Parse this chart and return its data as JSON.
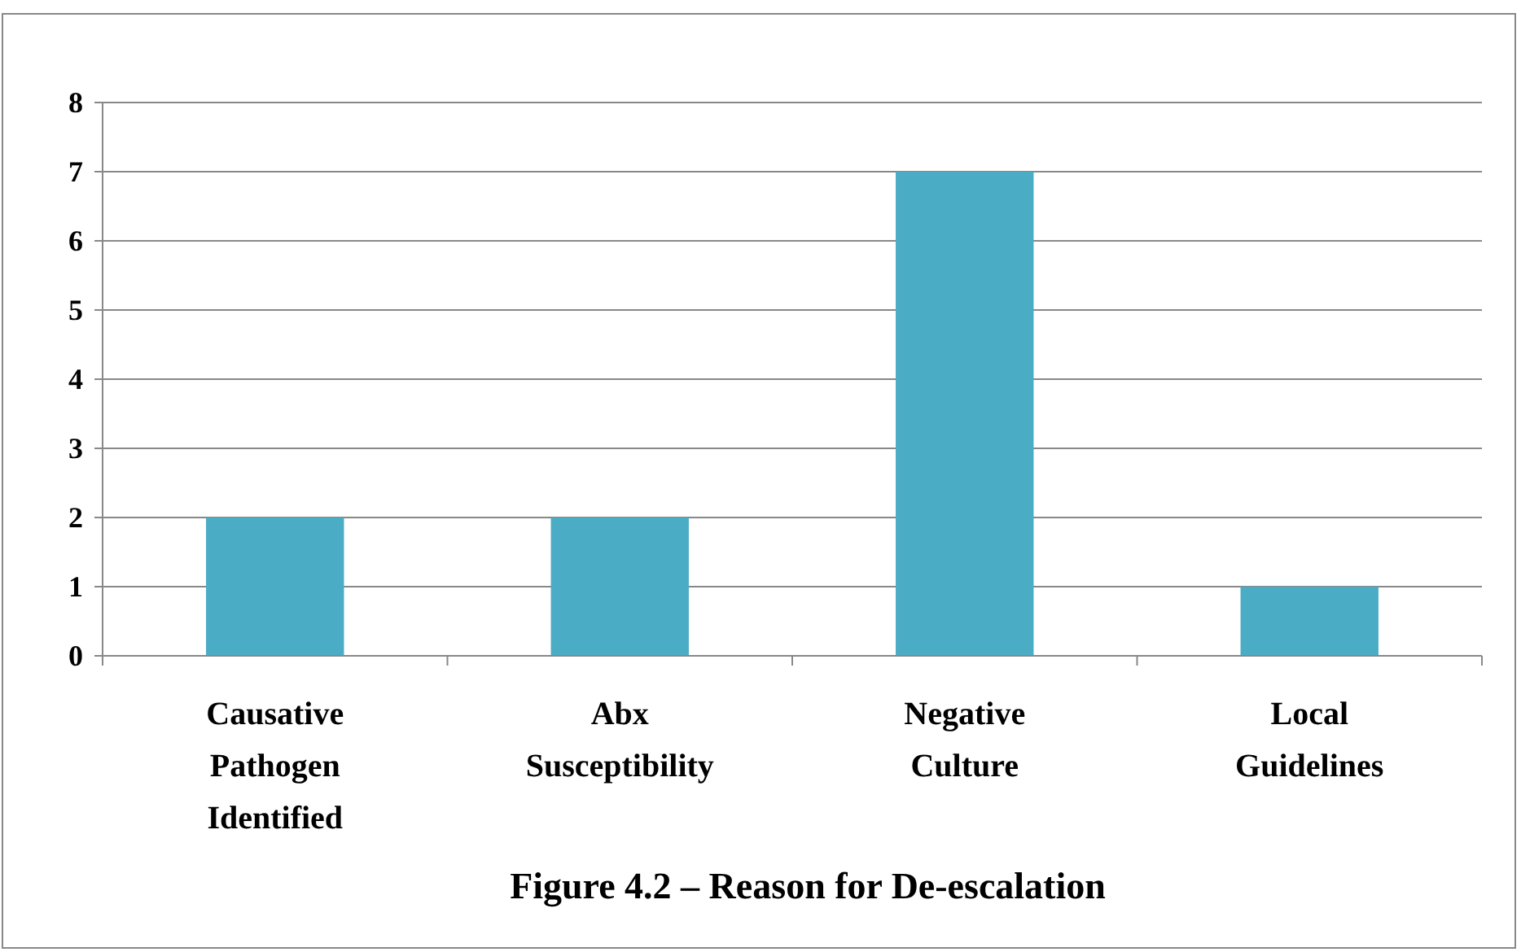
{
  "chart_data": {
    "type": "bar",
    "title": "Figure 4.2 – Reason for De-escalation",
    "categories": [
      "Causative Pathogen Identified",
      "Abx Susceptibility",
      "Negative Culture",
      "Local Guidelines"
    ],
    "values": [
      2,
      2,
      7,
      1
    ],
    "color": "#4bacc6",
    "ylim": [
      0,
      8
    ],
    "yticks": [
      0,
      1,
      2,
      3,
      4,
      5,
      6,
      7,
      8
    ],
    "grid": "y"
  }
}
